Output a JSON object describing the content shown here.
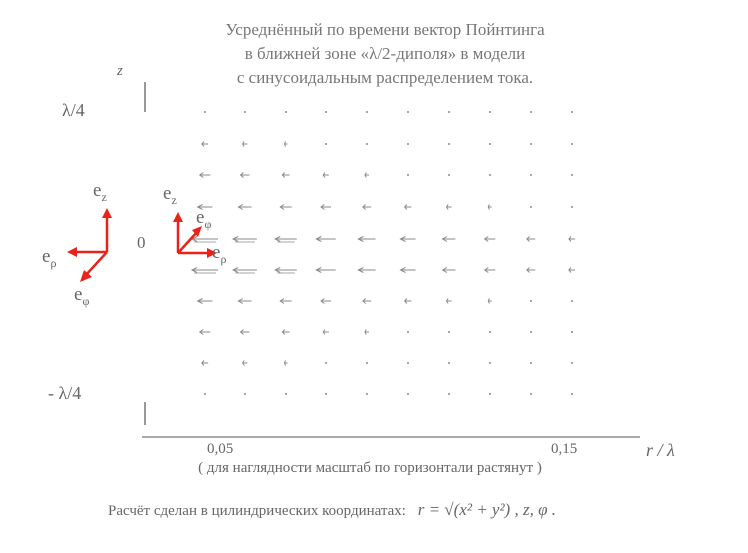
{
  "title_lines": [
    "Усреднённый по времени вектор Пойнтинга",
    "в ближней зоне «λ/2-диполя» в модели",
    "с синусоидальным распределением тока."
  ],
  "axis": {
    "z_label": "z",
    "top_label": "λ/4",
    "bottom_label": "- λ/4",
    "zero_label": "0",
    "tick_005": "0,05",
    "tick_015": "0,15",
    "r_label": "r / λ"
  },
  "basis_left": {
    "ez": "e",
    "ez_sub": "z",
    "erho": "e",
    "erho_sub": "ρ",
    "ephi": "e",
    "ephi_sub": "φ"
  },
  "basis_right": {
    "ez": "e",
    "ez_sub": "z",
    "erho": "e",
    "erho_sub": "ρ",
    "ephi": "e",
    "ephi_sub": "φ"
  },
  "note": "( для наглядности масштаб по горизонтали растянут )",
  "formula": {
    "prefix": "Расчёт сделан в цилиндрических координатах:",
    "expr": "r = √(x² + y²) ,  z,  φ ."
  },
  "colors": {
    "basis_arrows": "#e8231a",
    "field_arrows": "#8a8a8a",
    "axis": "#777777"
  }
}
